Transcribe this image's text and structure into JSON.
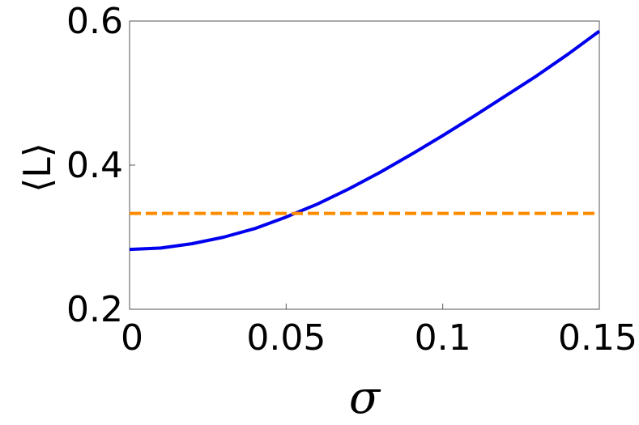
{
  "chart_data": {
    "type": "line",
    "title": "",
    "xlabel": "σ",
    "ylabel": "⟨L⟩",
    "xlim": [
      0,
      0.15
    ],
    "ylim": [
      0.2,
      0.6
    ],
    "x_ticks": [
      {
        "value": 0,
        "label": "0"
      },
      {
        "value": 0.05,
        "label": "0.05"
      },
      {
        "value": 0.1,
        "label": "0.1"
      },
      {
        "value": 0.15,
        "label": "0.15"
      }
    ],
    "y_ticks": [
      {
        "value": 0.2,
        "label": "0.2"
      },
      {
        "value": 0.4,
        "label": "0.4"
      },
      {
        "value": 0.6,
        "label": "0.6"
      }
    ],
    "grid": false,
    "legend": "none",
    "series": [
      {
        "color": "#0000ee",
        "style": "solid",
        "x": [
          0,
          0.01,
          0.02,
          0.03,
          0.04,
          0.05,
          0.06,
          0.07,
          0.08,
          0.09,
          0.1,
          0.11,
          0.12,
          0.13,
          0.14,
          0.15
        ],
        "y": [
          0.283,
          0.285,
          0.291,
          0.3,
          0.312,
          0.328,
          0.346,
          0.367,
          0.39,
          0.415,
          0.441,
          0.468,
          0.496,
          0.524,
          0.554,
          0.586
        ]
      },
      {
        "color": "#ff8c00",
        "style": "dashed",
        "x": [
          0,
          0.15
        ],
        "y": [
          0.333,
          0.333
        ]
      }
    ]
  }
}
